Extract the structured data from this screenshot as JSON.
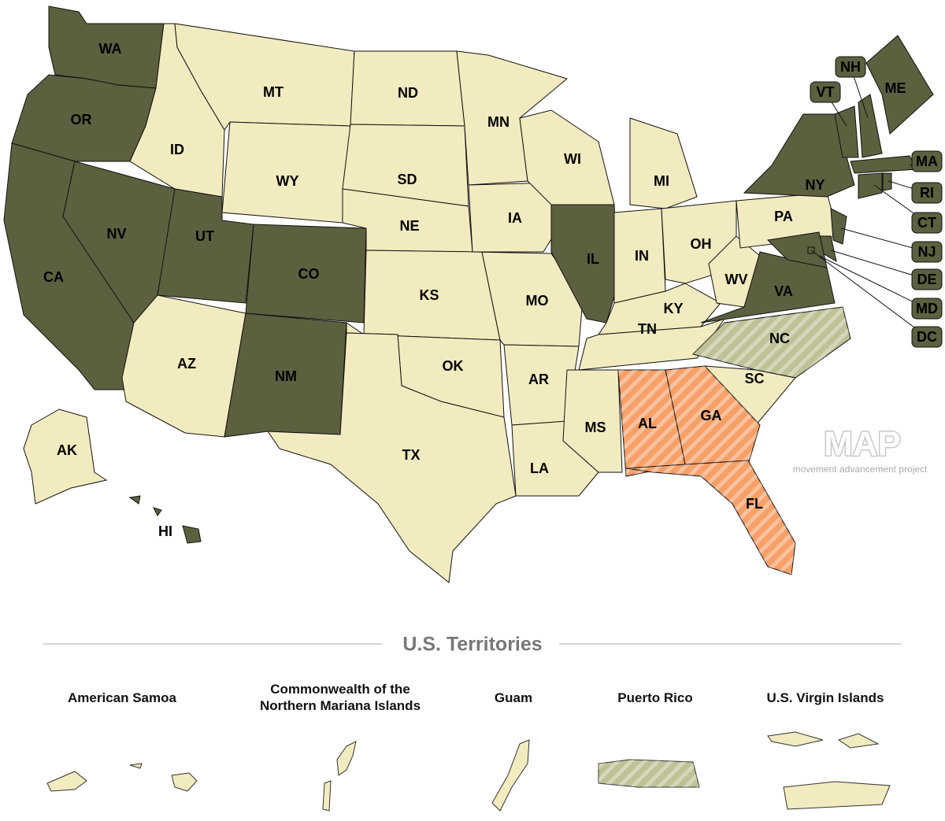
{
  "map": {
    "states": [
      {
        "label": "WA",
        "color": "#5d603f",
        "hatch": false
      },
      {
        "label": "OR",
        "color": "#5d603f",
        "hatch": false
      },
      {
        "label": "CA",
        "color": "#5d603f",
        "hatch": false
      },
      {
        "label": "NV",
        "color": "#5d603f",
        "hatch": false
      },
      {
        "label": "ID",
        "color": "#f3ebc0",
        "hatch": false
      },
      {
        "label": "MT",
        "color": "#f3ebc0",
        "hatch": false
      },
      {
        "label": "WY",
        "color": "#f3ebc0",
        "hatch": false
      },
      {
        "label": "UT",
        "color": "#5d603f",
        "hatch": false
      },
      {
        "label": "CO",
        "color": "#5d603f",
        "hatch": false
      },
      {
        "label": "AZ",
        "color": "#f3ebc0",
        "hatch": false
      },
      {
        "label": "NM",
        "color": "#5d603f",
        "hatch": false
      },
      {
        "label": "ND",
        "color": "#f3ebc0",
        "hatch": false
      },
      {
        "label": "SD",
        "color": "#f3ebc0",
        "hatch": false
      },
      {
        "label": "NE",
        "color": "#f3ebc0",
        "hatch": false
      },
      {
        "label": "KS",
        "color": "#f3ebc0",
        "hatch": false
      },
      {
        "label": "OK",
        "color": "#f3ebc0",
        "hatch": false
      },
      {
        "label": "TX",
        "color": "#f3ebc0",
        "hatch": false
      },
      {
        "label": "MN",
        "color": "#f3ebc0",
        "hatch": false
      },
      {
        "label": "IA",
        "color": "#f3ebc0",
        "hatch": false
      },
      {
        "label": "MO",
        "color": "#f3ebc0",
        "hatch": false
      },
      {
        "label": "AR",
        "color": "#f3ebc0",
        "hatch": false
      },
      {
        "label": "LA",
        "color": "#f3ebc0",
        "hatch": false
      },
      {
        "label": "MS",
        "color": "#f3ebc0",
        "hatch": false
      },
      {
        "label": "WI",
        "color": "#f3ebc0",
        "hatch": false
      },
      {
        "label": "IL",
        "color": "#5d603f",
        "hatch": false
      },
      {
        "label": "IN",
        "color": "#f3ebc0",
        "hatch": false
      },
      {
        "label": "MI",
        "color": "#f3ebc0",
        "hatch": false
      },
      {
        "label": "OH",
        "color": "#f3ebc0",
        "hatch": false
      },
      {
        "label": "KY",
        "color": "#f3ebc0",
        "hatch": false
      },
      {
        "label": "TN",
        "color": "#f3ebc0",
        "hatch": false
      },
      {
        "label": "WV",
        "color": "#f3ebc0",
        "hatch": false
      },
      {
        "label": "VA",
        "color": "#5d603f",
        "hatch": false
      },
      {
        "label": "NC",
        "color": "#bfc196",
        "hatch": true
      },
      {
        "label": "SC",
        "color": "#f3ebc0",
        "hatch": false
      },
      {
        "label": "GA",
        "color": "#f6a068",
        "hatch": true
      },
      {
        "label": "AL",
        "color": "#f6a068",
        "hatch": true
      },
      {
        "label": "FL",
        "color": "#f6a068",
        "hatch": true
      },
      {
        "label": "PA",
        "color": "#f3ebc0",
        "hatch": false
      },
      {
        "label": "NY",
        "color": "#5d603f",
        "hatch": false
      },
      {
        "label": "ME",
        "color": "#5d603f",
        "hatch": false
      },
      {
        "label": "VT",
        "color": "#5d603f",
        "hatch": false
      },
      {
        "label": "NH",
        "color": "#5d603f",
        "hatch": false
      },
      {
        "label": "MA",
        "color": "#5d603f",
        "hatch": false
      },
      {
        "label": "CT",
        "color": "#5d603f",
        "hatch": false
      },
      {
        "label": "RI",
        "color": "#5d603f",
        "hatch": false
      },
      {
        "label": "NJ",
        "color": "#5d603f",
        "hatch": false
      },
      {
        "label": "DE",
        "color": "#5d603f",
        "hatch": false
      },
      {
        "label": "MD",
        "color": "#5d603f",
        "hatch": false
      },
      {
        "label": "DC",
        "color": "#5d603f",
        "hatch": false
      },
      {
        "label": "AK",
        "color": "#f3ebc0",
        "hatch": false
      },
      {
        "label": "HI",
        "color": "#5d603f",
        "hatch": false
      }
    ],
    "logo": {
      "text": "MAP",
      "tagline": "movement advancement project"
    },
    "territories_heading": "U.S. Territories",
    "territories": [
      {
        "name": "American Samoa",
        "color": "#f3ebc0",
        "hatch": false
      },
      {
        "name": "Commonwealth of the Northern Mariana Islands",
        "color": "#f3ebc0",
        "hatch": false
      },
      {
        "name": "Guam",
        "color": "#f3ebc0",
        "hatch": false
      },
      {
        "name": "Puerto Rico",
        "color": "#bfc196",
        "hatch": true
      },
      {
        "name": "U.S. Virgin Islands",
        "color": "#f3ebc0",
        "hatch": false
      }
    ]
  }
}
